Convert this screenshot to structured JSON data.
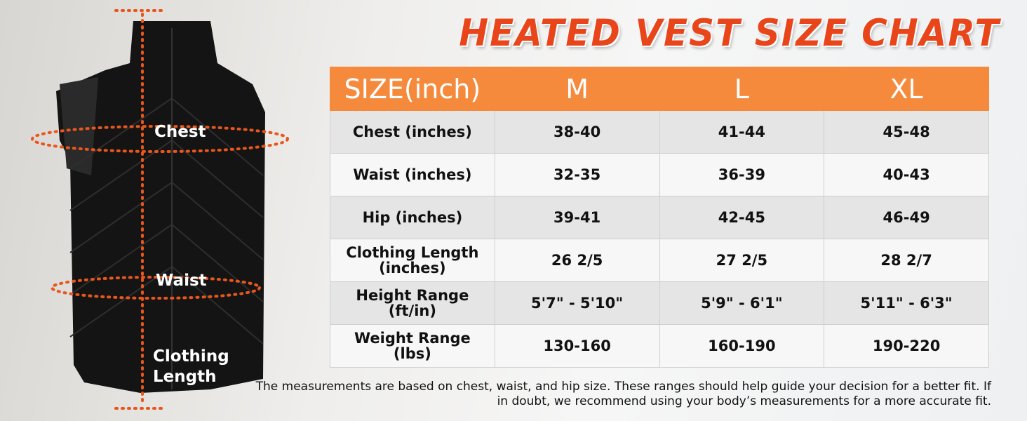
{
  "title": "HEATED VEST SIZE CHART",
  "vest_labels": [
    "Chest",
    "Waist",
    "Clothing Length"
  ],
  "table": {
    "header": [
      "SIZE(inch)",
      "M",
      "L",
      "XL"
    ],
    "rows": [
      [
        "Chest (inches)",
        "38-40",
        "41-44",
        "45-48"
      ],
      [
        "Waist (inches)",
        "32-35",
        "36-39",
        "40-43"
      ],
      [
        "Hip (inches)",
        "39-41",
        "42-45",
        "46-49"
      ],
      [
        "Clothing Length (inches)",
        "26 2/5",
        "27 2/5",
        "28 2/7"
      ],
      [
        "Height Range (ft/in)",
        "5'7\" - 5'10\"",
        "5'9\" - 6'1\"",
        "5'11\" - 6'3\""
      ],
      [
        "Weight Range (lbs)",
        "130-160",
        "160-190",
        "190-220"
      ]
    ]
  },
  "footnote": "The measurements are based on chest, waist, and hip size. These ranges should help guide your decision for a better fit. If in doubt, we recommend using your body’s measurements for a more accurate fit."
}
